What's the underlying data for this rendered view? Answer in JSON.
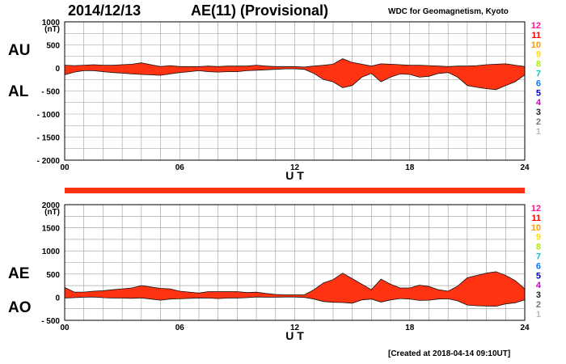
{
  "header": {
    "date": "2014/12/13",
    "title": "AE(11) (Provisional)",
    "source": "WDC for Geomagnetism, Kyoto",
    "created": "[Created at 2018-04-14 09:10UT]"
  },
  "labels": {
    "au": "AU",
    "al": "AL",
    "ae": "AE",
    "ao": "AO"
  },
  "colors": {
    "fill": "#ff3311",
    "grid": "#999999",
    "bar": "#ff3311"
  },
  "station_legend": [
    {
      "label": "12",
      "color": "#ff1493"
    },
    {
      "label": "11",
      "color": "#ff0000"
    },
    {
      "label": "10",
      "color": "#ff9900"
    },
    {
      "label": "9",
      "color": "#ffdd00"
    },
    {
      "label": "8",
      "color": "#aaee00"
    },
    {
      "label": "7",
      "color": "#00cccc"
    },
    {
      "label": "6",
      "color": "#0077ff"
    },
    {
      "label": "5",
      "color": "#0000cc"
    },
    {
      "label": "4",
      "color": "#cc00cc"
    },
    {
      "label": "3",
      "color": "#222222"
    },
    {
      "label": "2",
      "color": "#777777"
    },
    {
      "label": "1",
      "color": "#bbbbbb"
    }
  ],
  "chart_data": [
    {
      "type": "area",
      "name": "AU/AL",
      "xlabel": "U T",
      "ylabel": "(nT)",
      "xlim": [
        0,
        24
      ],
      "ylim": [
        -2000,
        1000
      ],
      "x_ticks": [
        0,
        6,
        12,
        18,
        24
      ],
      "x_tick_labels": [
        "00",
        "06",
        "12",
        "18",
        "24"
      ],
      "y_ticks": [
        1000,
        500,
        0,
        -500,
        -1000,
        -1500,
        -2000
      ],
      "y_tick_labels": [
        "1000",
        "500",
        "0",
        "- 500",
        "- 1000",
        "- 1500",
        "- 2000"
      ],
      "x": [
        0,
        0.5,
        1,
        1.5,
        2,
        2.5,
        3,
        3.5,
        4,
        4.5,
        5,
        5.5,
        6,
        6.5,
        7,
        7.5,
        8,
        8.5,
        9,
        9.5,
        10,
        10.5,
        11,
        11.5,
        12,
        12.5,
        13,
        13.5,
        14,
        14.5,
        15,
        15.5,
        16,
        16.5,
        17,
        17.5,
        18,
        18.5,
        19,
        19.5,
        20,
        20.5,
        21,
        21.5,
        22,
        22.5,
        23,
        23.5,
        24
      ],
      "series": [
        {
          "key": "AU",
          "values": [
            60,
            50,
            60,
            70,
            60,
            60,
            70,
            80,
            110,
            70,
            30,
            50,
            30,
            30,
            30,
            40,
            30,
            40,
            40,
            40,
            60,
            40,
            30,
            30,
            30,
            20,
            40,
            60,
            80,
            200,
            120,
            80,
            40,
            90,
            80,
            70,
            60,
            60,
            50,
            40,
            30,
            40,
            40,
            50,
            70,
            80,
            90,
            60,
            30
          ]
        },
        {
          "key": "AL",
          "values": [
            -150,
            -90,
            -60,
            -60,
            -80,
            -100,
            -110,
            -130,
            -140,
            -150,
            -160,
            -130,
            -100,
            -80,
            -60,
            -80,
            -90,
            -80,
            -80,
            -60,
            -50,
            -40,
            -30,
            -20,
            -20,
            -30,
            -120,
            -250,
            -300,
            -430,
            -380,
            -200,
            -120,
            -300,
            -200,
            -130,
            -140,
            -200,
            -180,
            -120,
            -100,
            -200,
            -380,
            -420,
            -450,
            -470,
            -380,
            -300,
            -150
          ]
        }
      ]
    },
    {
      "type": "area",
      "name": "AE/AO",
      "xlabel": "U T",
      "ylabel": "(nT)",
      "xlim": [
        0,
        24
      ],
      "ylim": [
        -500,
        2000
      ],
      "x_ticks": [
        0,
        6,
        12,
        18,
        24
      ],
      "x_tick_labels": [
        "00",
        "06",
        "12",
        "18",
        "24"
      ],
      "y_ticks": [
        2000,
        1500,
        1000,
        500,
        0,
        -500
      ],
      "y_tick_labels": [
        "2000",
        "1500",
        "1000",
        "500",
        "0",
        "- 500"
      ],
      "x": [
        0,
        0.5,
        1,
        1.5,
        2,
        2.5,
        3,
        3.5,
        4,
        4.5,
        5,
        5.5,
        6,
        6.5,
        7,
        7.5,
        8,
        8.5,
        9,
        9.5,
        10,
        10.5,
        11,
        11.5,
        12,
        12.5,
        13,
        13.5,
        14,
        14.5,
        15,
        15.5,
        16,
        16.5,
        17,
        17.5,
        18,
        18.5,
        19,
        19.5,
        20,
        20.5,
        21,
        21.5,
        22,
        22.5,
        23,
        23.5,
        24
      ],
      "series": [
        {
          "key": "AE",
          "values": [
            210,
            110,
            110,
            130,
            140,
            160,
            180,
            200,
            250,
            220,
            190,
            180,
            130,
            110,
            90,
            120,
            120,
            120,
            120,
            100,
            110,
            80,
            60,
            50,
            50,
            50,
            160,
            310,
            380,
            520,
            400,
            280,
            160,
            390,
            280,
            200,
            200,
            260,
            230,
            160,
            130,
            240,
            420,
            470,
            520,
            550,
            470,
            360,
            180
          ]
        },
        {
          "key": "AO",
          "values": [
            -20,
            -10,
            0,
            5,
            -10,
            -20,
            -20,
            -25,
            -15,
            -40,
            -65,
            -40,
            -35,
            -25,
            -15,
            -20,
            -30,
            -20,
            -20,
            -10,
            5,
            0,
            0,
            5,
            5,
            -5,
            -40,
            -95,
            -110,
            -115,
            -130,
            -60,
            -40,
            -105,
            -60,
            -30,
            -40,
            -70,
            -65,
            -40,
            -35,
            -80,
            -170,
            -185,
            -190,
            -195,
            -145,
            -120,
            -60
          ]
        }
      ]
    }
  ]
}
